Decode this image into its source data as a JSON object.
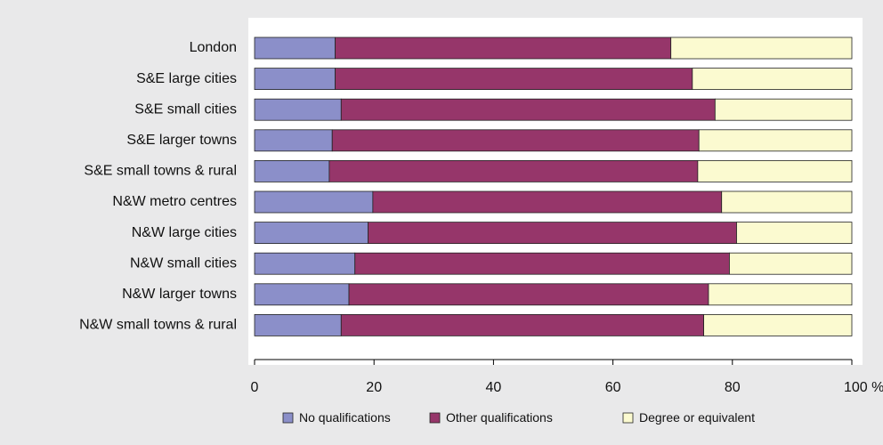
{
  "chart_data": {
    "type": "bar",
    "orientation": "horizontal",
    "stacked": true,
    "categories": [
      "London",
      "S&E large cities",
      "S&E small cities",
      "S&E larger towns",
      "S&E small towns & rural",
      "N&W metro centres",
      "N&W large cities",
      "N&W small cities",
      "N&W larger towns",
      "N&W small towns & rural"
    ],
    "series": [
      {
        "name": "No qualifications",
        "color": "#8b8fc9",
        "values": [
          13.5,
          13.5,
          14.5,
          13.0,
          12.5,
          19.8,
          19.0,
          16.8,
          15.8,
          14.5
        ]
      },
      {
        "name": "Other qualifications",
        "color": "#96366a",
        "values": [
          56.2,
          59.8,
          62.6,
          61.4,
          61.7,
          58.4,
          61.7,
          62.7,
          60.2,
          60.7
        ]
      },
      {
        "name": "Degree or equivalent",
        "color": "#fbfad0",
        "values": [
          30.3,
          26.7,
          22.9,
          25.6,
          25.8,
          21.8,
          19.3,
          20.5,
          24.0,
          24.8
        ]
      }
    ],
    "xaxis": {
      "ticks": [
        "0",
        "20",
        "40",
        "60",
        "80",
        "100 %"
      ],
      "tick_values": [
        0,
        20,
        40,
        60,
        80,
        100
      ],
      "range": [
        0,
        100
      ]
    },
    "grid": false,
    "legend_position": "bottom"
  }
}
